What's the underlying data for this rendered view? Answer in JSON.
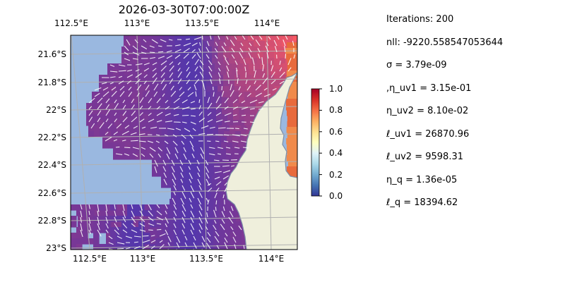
{
  "map": {
    "title": "2026-03-30T07:00:00Z",
    "lon_labels": [
      "112.5°E",
      "113°E",
      "113.5°E",
      "114°E"
    ],
    "lat_labels": [
      "21.6°S",
      "21.8°S",
      "22°S",
      "22.2°S",
      "22.4°S",
      "22.6°S",
      "22.8°S",
      "23°S"
    ],
    "lon_range": [
      112.5,
      114.2
    ],
    "lat_range": [
      -23.0,
      -21.5
    ],
    "colors": {
      "ocean": "#9ab8e0",
      "land": "#efefdc",
      "coast": "#7d8fa8",
      "grid": "#b0b0b0",
      "arrows": "#ffffff"
    },
    "colormap": "RdYlBu_r"
  },
  "colorbar": {
    "ticks": [
      "1.0",
      "0.8",
      "0.6",
      "0.4",
      "0.2",
      "0.0"
    ],
    "range": [
      0,
      1
    ]
  },
  "stats": [
    "Iterations: 200",
    "nll: -9220.558547053644",
    "σ = 3.79e-09",
    ",η_uv1 = 3.15e-01",
    "η_uv2 = 8.10e-02",
    "ℓ_uv1 = 26870.96",
    "ℓ_uv2 = 9598.31",
    "η_q = 1.36e-05",
    "ℓ_q = 18394.62"
  ]
}
